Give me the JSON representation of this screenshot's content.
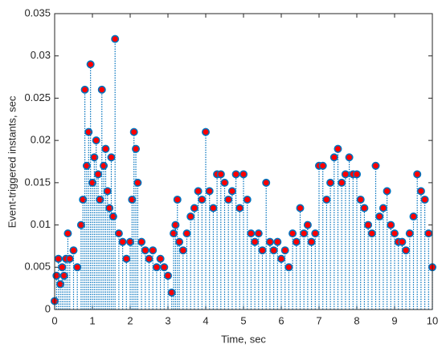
{
  "chart_data": {
    "type": "stem",
    "xlabel": "Time, sec",
    "ylabel": "Event-triggered instants, sec",
    "xlim": [
      0,
      10
    ],
    "xticks": [
      0,
      1,
      2,
      3,
      4,
      5,
      6,
      7,
      8,
      9,
      10
    ],
    "ylim": [
      0,
      0.035
    ],
    "yticks": [
      0,
      0.005,
      0.01,
      0.015,
      0.02,
      0.025,
      0.03,
      0.035
    ],
    "series": [
      {
        "color": "#0072bd",
        "marker_fill": "#ff0000",
        "x": [
          0.0,
          0.05,
          0.1,
          0.15,
          0.2,
          0.25,
          0.3,
          0.35,
          0.4,
          0.5,
          0.6,
          0.7,
          0.75,
          0.8,
          0.85,
          0.9,
          0.95,
          1.0,
          1.05,
          1.1,
          1.15,
          1.2,
          1.25,
          1.3,
          1.35,
          1.4,
          1.45,
          1.5,
          1.55,
          1.6,
          1.7,
          1.8,
          1.9,
          2.0,
          2.05,
          2.1,
          2.15,
          2.2,
          2.3,
          2.4,
          2.5,
          2.6,
          2.7,
          2.8,
          2.9,
          3.0,
          3.1,
          3.15,
          3.2,
          3.25,
          3.3,
          3.4,
          3.5,
          3.6,
          3.7,
          3.8,
          3.9,
          4.0,
          4.1,
          4.2,
          4.3,
          4.4,
          4.5,
          4.6,
          4.7,
          4.8,
          4.9,
          5.0,
          5.1,
          5.2,
          5.3,
          5.4,
          5.5,
          5.6,
          5.7,
          5.8,
          5.9,
          6.0,
          6.1,
          6.2,
          6.3,
          6.4,
          6.5,
          6.6,
          6.7,
          6.8,
          6.9,
          7.0,
          7.1,
          7.2,
          7.3,
          7.4,
          7.5,
          7.6,
          7.7,
          7.8,
          7.9,
          8.0,
          8.1,
          8.2,
          8.3,
          8.4,
          8.5,
          8.6,
          8.7,
          8.8,
          8.9,
          9.0,
          9.1,
          9.2,
          9.3,
          9.4,
          9.5,
          9.6,
          9.7,
          9.8,
          9.9,
          10.0
        ],
        "values": [
          0.001,
          0.004,
          0.006,
          0.003,
          0.005,
          0.004,
          0.006,
          0.009,
          0.006,
          0.007,
          0.005,
          0.01,
          0.013,
          0.026,
          0.017,
          0.021,
          0.029,
          0.015,
          0.018,
          0.02,
          0.016,
          0.013,
          0.026,
          0.017,
          0.019,
          0.014,
          0.012,
          0.018,
          0.011,
          0.032,
          0.009,
          0.008,
          0.006,
          0.008,
          0.013,
          0.021,
          0.019,
          0.015,
          0.008,
          0.007,
          0.006,
          0.007,
          0.005,
          0.006,
          0.005,
          0.004,
          0.002,
          0.009,
          0.01,
          0.013,
          0.008,
          0.007,
          0.009,
          0.011,
          0.012,
          0.014,
          0.013,
          0.021,
          0.014,
          0.012,
          0.016,
          0.016,
          0.015,
          0.013,
          0.014,
          0.016,
          0.012,
          0.016,
          0.013,
          0.009,
          0.008,
          0.009,
          0.007,
          0.015,
          0.008,
          0.007,
          0.008,
          0.006,
          0.007,
          0.005,
          0.009,
          0.008,
          0.012,
          0.009,
          0.01,
          0.008,
          0.009,
          0.017,
          0.017,
          0.013,
          0.015,
          0.018,
          0.019,
          0.015,
          0.016,
          0.018,
          0.016,
          0.016,
          0.013,
          0.012,
          0.01,
          0.009,
          0.017,
          0.011,
          0.012,
          0.014,
          0.01,
          0.009,
          0.008,
          0.008,
          0.007,
          0.009,
          0.011,
          0.016,
          0.014,
          0.013,
          0.009,
          0.005
        ]
      }
    ]
  }
}
